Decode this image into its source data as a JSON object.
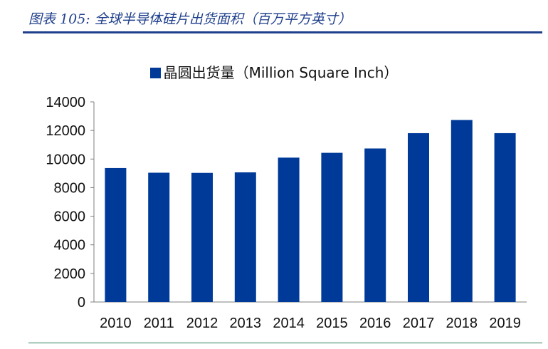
{
  "caption": "图表 105:  全球半导体硅片出货面积（百万平方英寸）",
  "colors": {
    "bar": "#003a99",
    "caption": "#1f3f8c",
    "footer_rule": "#2e7d5b"
  },
  "chart_data": {
    "type": "bar",
    "categories": [
      "2010",
      "2011",
      "2012",
      "2013",
      "2014",
      "2015",
      "2016",
      "2017",
      "2018",
      "2019"
    ],
    "series": [
      {
        "name": "晶圆出货量（Million Square Inch）",
        "values": [
          9370,
          9043,
          9031,
          9067,
          10098,
          10434,
          10738,
          11810,
          12732,
          11810
        ]
      }
    ],
    "ylim": [
      0,
      14000
    ],
    "yticks": [
      0,
      2000,
      4000,
      6000,
      8000,
      10000,
      12000,
      14000
    ],
    "grid": false,
    "legend_position": "top-center"
  }
}
